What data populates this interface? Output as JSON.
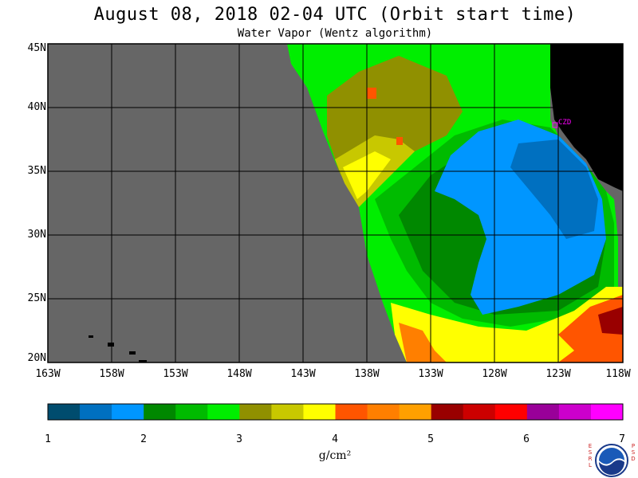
{
  "title": "August 08, 2018  02-04 UTC  (Orbit start time)",
  "subtitle": "Water Vapor (Wentz algorithm)",
  "map": {
    "lat_labels": [
      "45N",
      "40N",
      "35N",
      "30N",
      "25N",
      "20N"
    ],
    "lon_labels": [
      "163W",
      "158W",
      "153W",
      "148W",
      "143W",
      "138W",
      "133W",
      "128W",
      "123W",
      "118W"
    ],
    "station_label": "CZD",
    "colors": {
      "no_data": "#666666",
      "land": "#000000",
      "grid": "#000000",
      "station": "#ff00ff"
    }
  },
  "colorbar": {
    "ticks": [
      "1",
      "2",
      "3",
      "4",
      "5",
      "6",
      "7"
    ],
    "unit": "g/cm²",
    "colors": [
      "#004c6e",
      "#0070c0",
      "#0096ff",
      "#008800",
      "#00bb00",
      "#00ee00",
      "#909000",
      "#c8c800",
      "#ffff00",
      "#ff5500",
      "#ff7f00",
      "#ffa000",
      "#990000",
      "#cc0000",
      "#ff0000",
      "#990099",
      "#cc00cc",
      "#ff00ff"
    ]
  },
  "logo": {
    "name": "noaa-logo",
    "left_letters": [
      "E",
      "S",
      "R",
      "L"
    ],
    "right_letters": [
      "P",
      "S",
      "D"
    ]
  }
}
